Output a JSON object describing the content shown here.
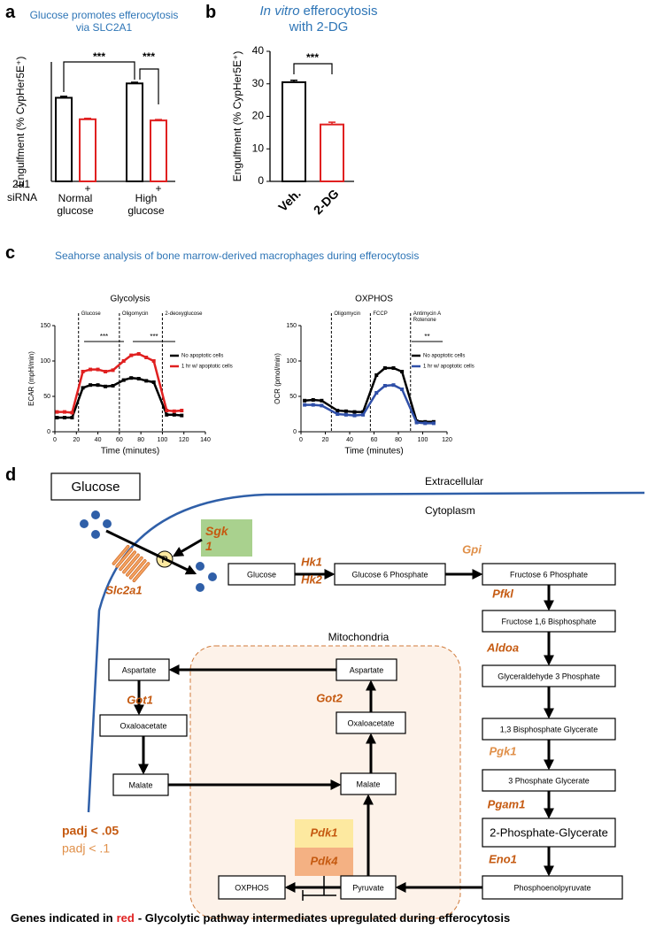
{
  "panel_labels": [
    "a",
    "b",
    "c",
    "d"
  ],
  "panel_c_title": "Seahorse analysis of bone marrow-derived macrophages during efferocytosis",
  "chart_data": [
    {
      "type": "bar",
      "title": "Glucose promotes efferocytosis via SLC2A1",
      "ylabel": "Engulfment (% CypHer5E⁺)",
      "ylim": [
        0,
        50
      ],
      "values": [
        35,
        26,
        41,
        25.5
      ],
      "errors": [
        0.6,
        0.4,
        0.5,
        0.4
      ],
      "colors": [
        "#000000",
        "#e02020",
        "#000000",
        "#e02020"
      ],
      "categories": [
        null,
        "+",
        null,
        "+"
      ],
      "row_label": [
        "2a1",
        "siRNA"
      ],
      "groups": [
        "Normal glucose",
        "High glucose"
      ],
      "annotations": [
        "***",
        "***"
      ]
    },
    {
      "type": "bar",
      "title_italic": "In vitro",
      "title": "efferocytosis with 2-DG",
      "ylabel": "Engulfment (% CypHer5E⁺)",
      "ylim": [
        0,
        40
      ],
      "yticks": [
        0,
        10,
        20,
        30,
        40
      ],
      "categories": [
        "Veh.",
        "2-DG"
      ],
      "values": [
        30.5,
        17.5
      ],
      "errors": [
        0.6,
        0.7
      ],
      "colors": [
        "#000000",
        "#e02020"
      ],
      "annotations": [
        "***"
      ]
    },
    {
      "type": "line",
      "title": "Glycolysis",
      "ylabel": "ECAR (mpH/min)",
      "xlabel": "Time (minutes)",
      "xlim": [
        0,
        140
      ],
      "xticks": [
        0,
        20,
        40,
        60,
        80,
        100,
        120,
        140
      ],
      "ylim": [
        0,
        150
      ],
      "yticks": [
        0,
        50,
        100,
        150
      ],
      "x": [
        2,
        9,
        16,
        26,
        33,
        40,
        47,
        54,
        64,
        71,
        78,
        85,
        92,
        104,
        111,
        118
      ],
      "series": [
        {
          "name": "No apoptotic cells",
          "color": "#000000",
          "values": [
            20,
            20,
            20,
            62,
            66,
            66,
            64,
            65,
            73,
            76,
            75,
            72,
            70,
            24,
            24,
            23
          ]
        },
        {
          "name": "1 hr w/ apoptotic cells",
          "color": "#e02020",
          "values": [
            28,
            28,
            27,
            85,
            88,
            88,
            85,
            87,
            100,
            108,
            110,
            105,
            100,
            30,
            29,
            30
          ]
        }
      ],
      "injections": [
        {
          "x": 22,
          "label": "Glucose"
        },
        {
          "x": 60,
          "label": "Oligomycin"
        },
        {
          "x": 100,
          "label": "2-deoxyglucose"
        }
      ],
      "annotations": [
        "***",
        "***"
      ],
      "legend": "upper right"
    },
    {
      "type": "line",
      "title": "OXPHOS",
      "ylabel": "OCR (pmol/min)",
      "xlabel": "Time (minutes)",
      "xlim": [
        0,
        120
      ],
      "xticks": [
        0,
        20,
        40,
        60,
        80,
        100,
        120
      ],
      "ylim": [
        0,
        150
      ],
      "yticks": [
        0,
        50,
        100,
        150
      ],
      "x": [
        3,
        10,
        17,
        30,
        37,
        44,
        51,
        62,
        69,
        76,
        83,
        95,
        102,
        109
      ],
      "series": [
        {
          "name": "No apoptotic cells",
          "color": "#000000",
          "values": [
            44,
            45,
            44,
            30,
            29,
            28,
            28,
            80,
            90,
            90,
            85,
            15,
            14,
            14
          ]
        },
        {
          "name": "1 hr w/ apoptotic cells",
          "color": "#2f4fa8",
          "values": [
            38,
            38,
            37,
            25,
            24,
            23,
            24,
            55,
            65,
            66,
            60,
            13,
            12,
            12
          ]
        }
      ],
      "injections": [
        {
          "x": 25,
          "label": "Oligomycin"
        },
        {
          "x": 57,
          "label": "FCCP"
        },
        {
          "x": 90,
          "label": "Antimycin A Rotenone"
        }
      ],
      "annotations": [
        "**"
      ],
      "legend": "upper right"
    }
  ],
  "diagram": {
    "extracellular": "Extracellular",
    "cytoplasm": "Cytoplasm",
    "mitochondria": "Mitochondria",
    "phospho": "P",
    "nodes": [
      "Glucose",
      "Glucose",
      "Glucose 6 Phosphate",
      "Fructose 6 Phosphate",
      "Fructose 1,6 Bisphosphate",
      "Glyceraldehyde 3 Phosphate",
      "1,3 Bisphosphate Glycerate",
      "3 Phosphate Glycerate",
      "2-Phosphate-Glycerate",
      "Phosphoenolpyruvate",
      "Pyruvate",
      "OXPHOS",
      "Malate",
      "Oxaloacetate",
      "Aspartate",
      "Aspartate",
      "Oxaloacetate",
      "Malate"
    ],
    "genes": [
      "Sgk1",
      "Slc2a1",
      "Hk1",
      "Hk2",
      "Gpi",
      "Pfkl",
      "Aldoa",
      "Pgk1",
      "Pgam1",
      "Eno1",
      "Got1",
      "Got2",
      "Pdk1",
      "Pdk4"
    ],
    "legend": [
      "padj < .05",
      "padj < .1"
    ]
  },
  "footer": {
    "before": "Genes indicated in",
    "red": "red",
    "after": "- Glycolytic pathway intermediates upregulated during efferocytosis"
  }
}
